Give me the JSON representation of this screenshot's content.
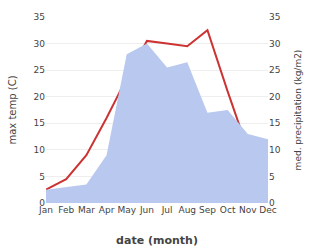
{
  "chart_data": {
    "type": "line",
    "xlabel": "date (month)",
    "ylabel": "max temp (C)",
    "y2label": "med. precipitation (kg/m2)",
    "categories": [
      "Jan",
      "Feb",
      "Mar",
      "Apr",
      "May",
      "Jun",
      "Jul",
      "Aug",
      "Sep",
      "Oct",
      "Nov",
      "Dec"
    ],
    "series": [
      {
        "type": "area",
        "color": "#b8c8ee",
        "axis": "y2",
        "values": [
          2.5,
          3.0,
          3.5,
          9.0,
          28.0,
          30.0,
          25.5,
          26.5,
          17.0,
          17.5,
          13.0,
          12.0
        ]
      },
      {
        "type": "line",
        "color": "#cc3333",
        "values": [
          2.5,
          4.5,
          9.0,
          16.0,
          23.5,
          30.5,
          30.0,
          29.5,
          32.5,
          21.0,
          10.0,
          4.5
        ]
      }
    ],
    "ylim": [
      0,
      35
    ],
    "yticks": [
      0,
      5,
      10,
      15,
      20,
      25,
      30,
      35
    ],
    "y2lim": [
      0,
      35
    ],
    "y2ticks": [
      0,
      5,
      10,
      15,
      20,
      25,
      30,
      35
    ],
    "grid": true
  }
}
